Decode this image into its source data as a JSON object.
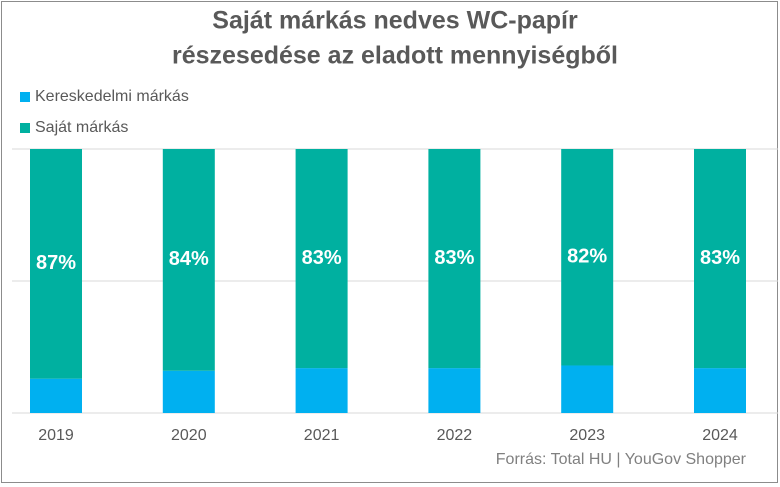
{
  "chart_data": {
    "type": "stacked_bar",
    "title": [
      "Saját márkás nedves WC-papír",
      "részesedése az eladott mennyiségből"
    ],
    "categories": [
      "2019",
      "2020",
      "2021",
      "2022",
      "2023",
      "2024"
    ],
    "series": [
      {
        "name": "Kereskedelmi márkás",
        "color": "#00b0f0",
        "values": [
          13,
          16,
          17,
          17,
          18,
          17
        ]
      },
      {
        "name": "Saját márkás",
        "color": "#00b0a0",
        "values": [
          87,
          84,
          83,
          83,
          82,
          83
        ],
        "value_labels": [
          "87%",
          "84%",
          "83%",
          "83%",
          "82%",
          "83%"
        ]
      }
    ],
    "ylim": [
      0,
      100
    ],
    "yticks": [
      0,
      50,
      100
    ],
    "grid": true,
    "source": "Forrás: Total HU | YouGov Shopper"
  }
}
